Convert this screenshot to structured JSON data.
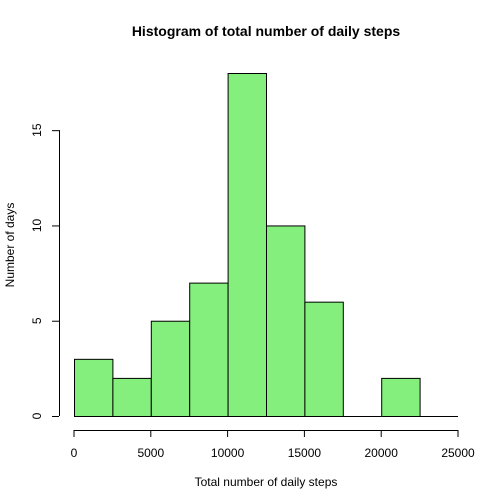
{
  "chart_data": {
    "type": "bar",
    "title": "Histogram of total number of daily steps",
    "xlabel": "Total number of daily steps",
    "ylabel": "Number of days",
    "bin_edges": [
      0,
      2500,
      5000,
      7500,
      10000,
      12500,
      15000,
      17500,
      20000,
      22500,
      25000
    ],
    "values": [
      3,
      2,
      5,
      7,
      18,
      10,
      6,
      0,
      2,
      0
    ],
    "xlim": [
      0,
      25000
    ],
    "ylim": [
      0,
      18
    ],
    "x_ticks": [
      0,
      5000,
      10000,
      15000,
      20000,
      25000
    ],
    "y_ticks": [
      0,
      5,
      10,
      15
    ],
    "bar_color": "#84ef7c",
    "grid": false,
    "legend": "none"
  }
}
